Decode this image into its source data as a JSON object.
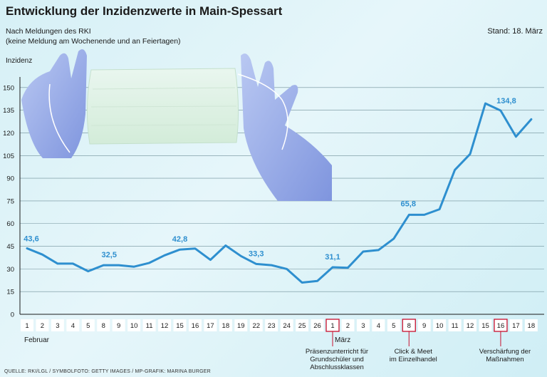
{
  "chart_data": {
    "type": "line",
    "title": "Entwicklung der Inzidenzwerte in Main-Spessart",
    "subtitle_lines": [
      "Nach Meldungen des RKI",
      "(keine Meldung am Wochenende und an Feiertagen)"
    ],
    "stand": "Stand: 18. März",
    "ylabel": "Inzidenz",
    "ylim": [
      0,
      157
    ],
    "yticks": [
      0,
      15,
      30,
      45,
      60,
      75,
      90,
      105,
      120,
      135,
      150
    ],
    "categories": [
      "1",
      "2",
      "3",
      "4",
      "5",
      "8",
      "9",
      "10",
      "11",
      "12",
      "15",
      "16",
      "17",
      "18",
      "19",
      "22",
      "23",
      "24",
      "25",
      "26",
      "1",
      "2",
      "3",
      "4",
      "5",
      "8",
      "9",
      "10",
      "11",
      "12",
      "15",
      "16",
      "17",
      "18"
    ],
    "values": [
      43.6,
      39.5,
      33.5,
      33.5,
      28.5,
      32.5,
      32.5,
      31.5,
      34,
      39,
      42.8,
      43.5,
      36,
      45.5,
      38.5,
      33.3,
      32.5,
      30,
      21,
      22,
      31.1,
      30.8,
      41.5,
      42.5,
      50,
      65.8,
      65.8,
      69.5,
      95.5,
      106,
      139.5,
      134.8,
      117.5,
      129
    ],
    "data_labels": [
      {
        "index": 0,
        "text": "43,6"
      },
      {
        "index": 5,
        "text": "32,5"
      },
      {
        "index": 10,
        "text": "42,8"
      },
      {
        "index": 15,
        "text": "33,3"
      },
      {
        "index": 20,
        "text": "31,1"
      },
      {
        "index": 25,
        "text": "65,8"
      },
      {
        "index": 31,
        "text": "134,8"
      }
    ],
    "months": [
      {
        "index": 0,
        "text": "Februar"
      },
      {
        "index": 20,
        "text": "März"
      }
    ],
    "highlighted_ticks": [
      20,
      25,
      31
    ],
    "annotations": [
      {
        "index": 20,
        "lines": [
          "Präsenzunterricht für",
          "Grundschüler und",
          "Abschlussklassen"
        ]
      },
      {
        "index": 25,
        "lines": [
          "Click & Meet",
          "im Einzelhandel"
        ]
      },
      {
        "index": 31,
        "lines": [
          "Verschärfung der",
          "Maßnahmen"
        ]
      }
    ],
    "line_color": "#2e8fcf",
    "highlight_color": "#c8102e",
    "grid": true
  },
  "source": "QUELLE: RKI/LGL / SYMBOLFOTO: GETTY IMAGES / MP-GRAFIK: MARINA BURGER",
  "photo_caption": "Mask with gloved hands"
}
